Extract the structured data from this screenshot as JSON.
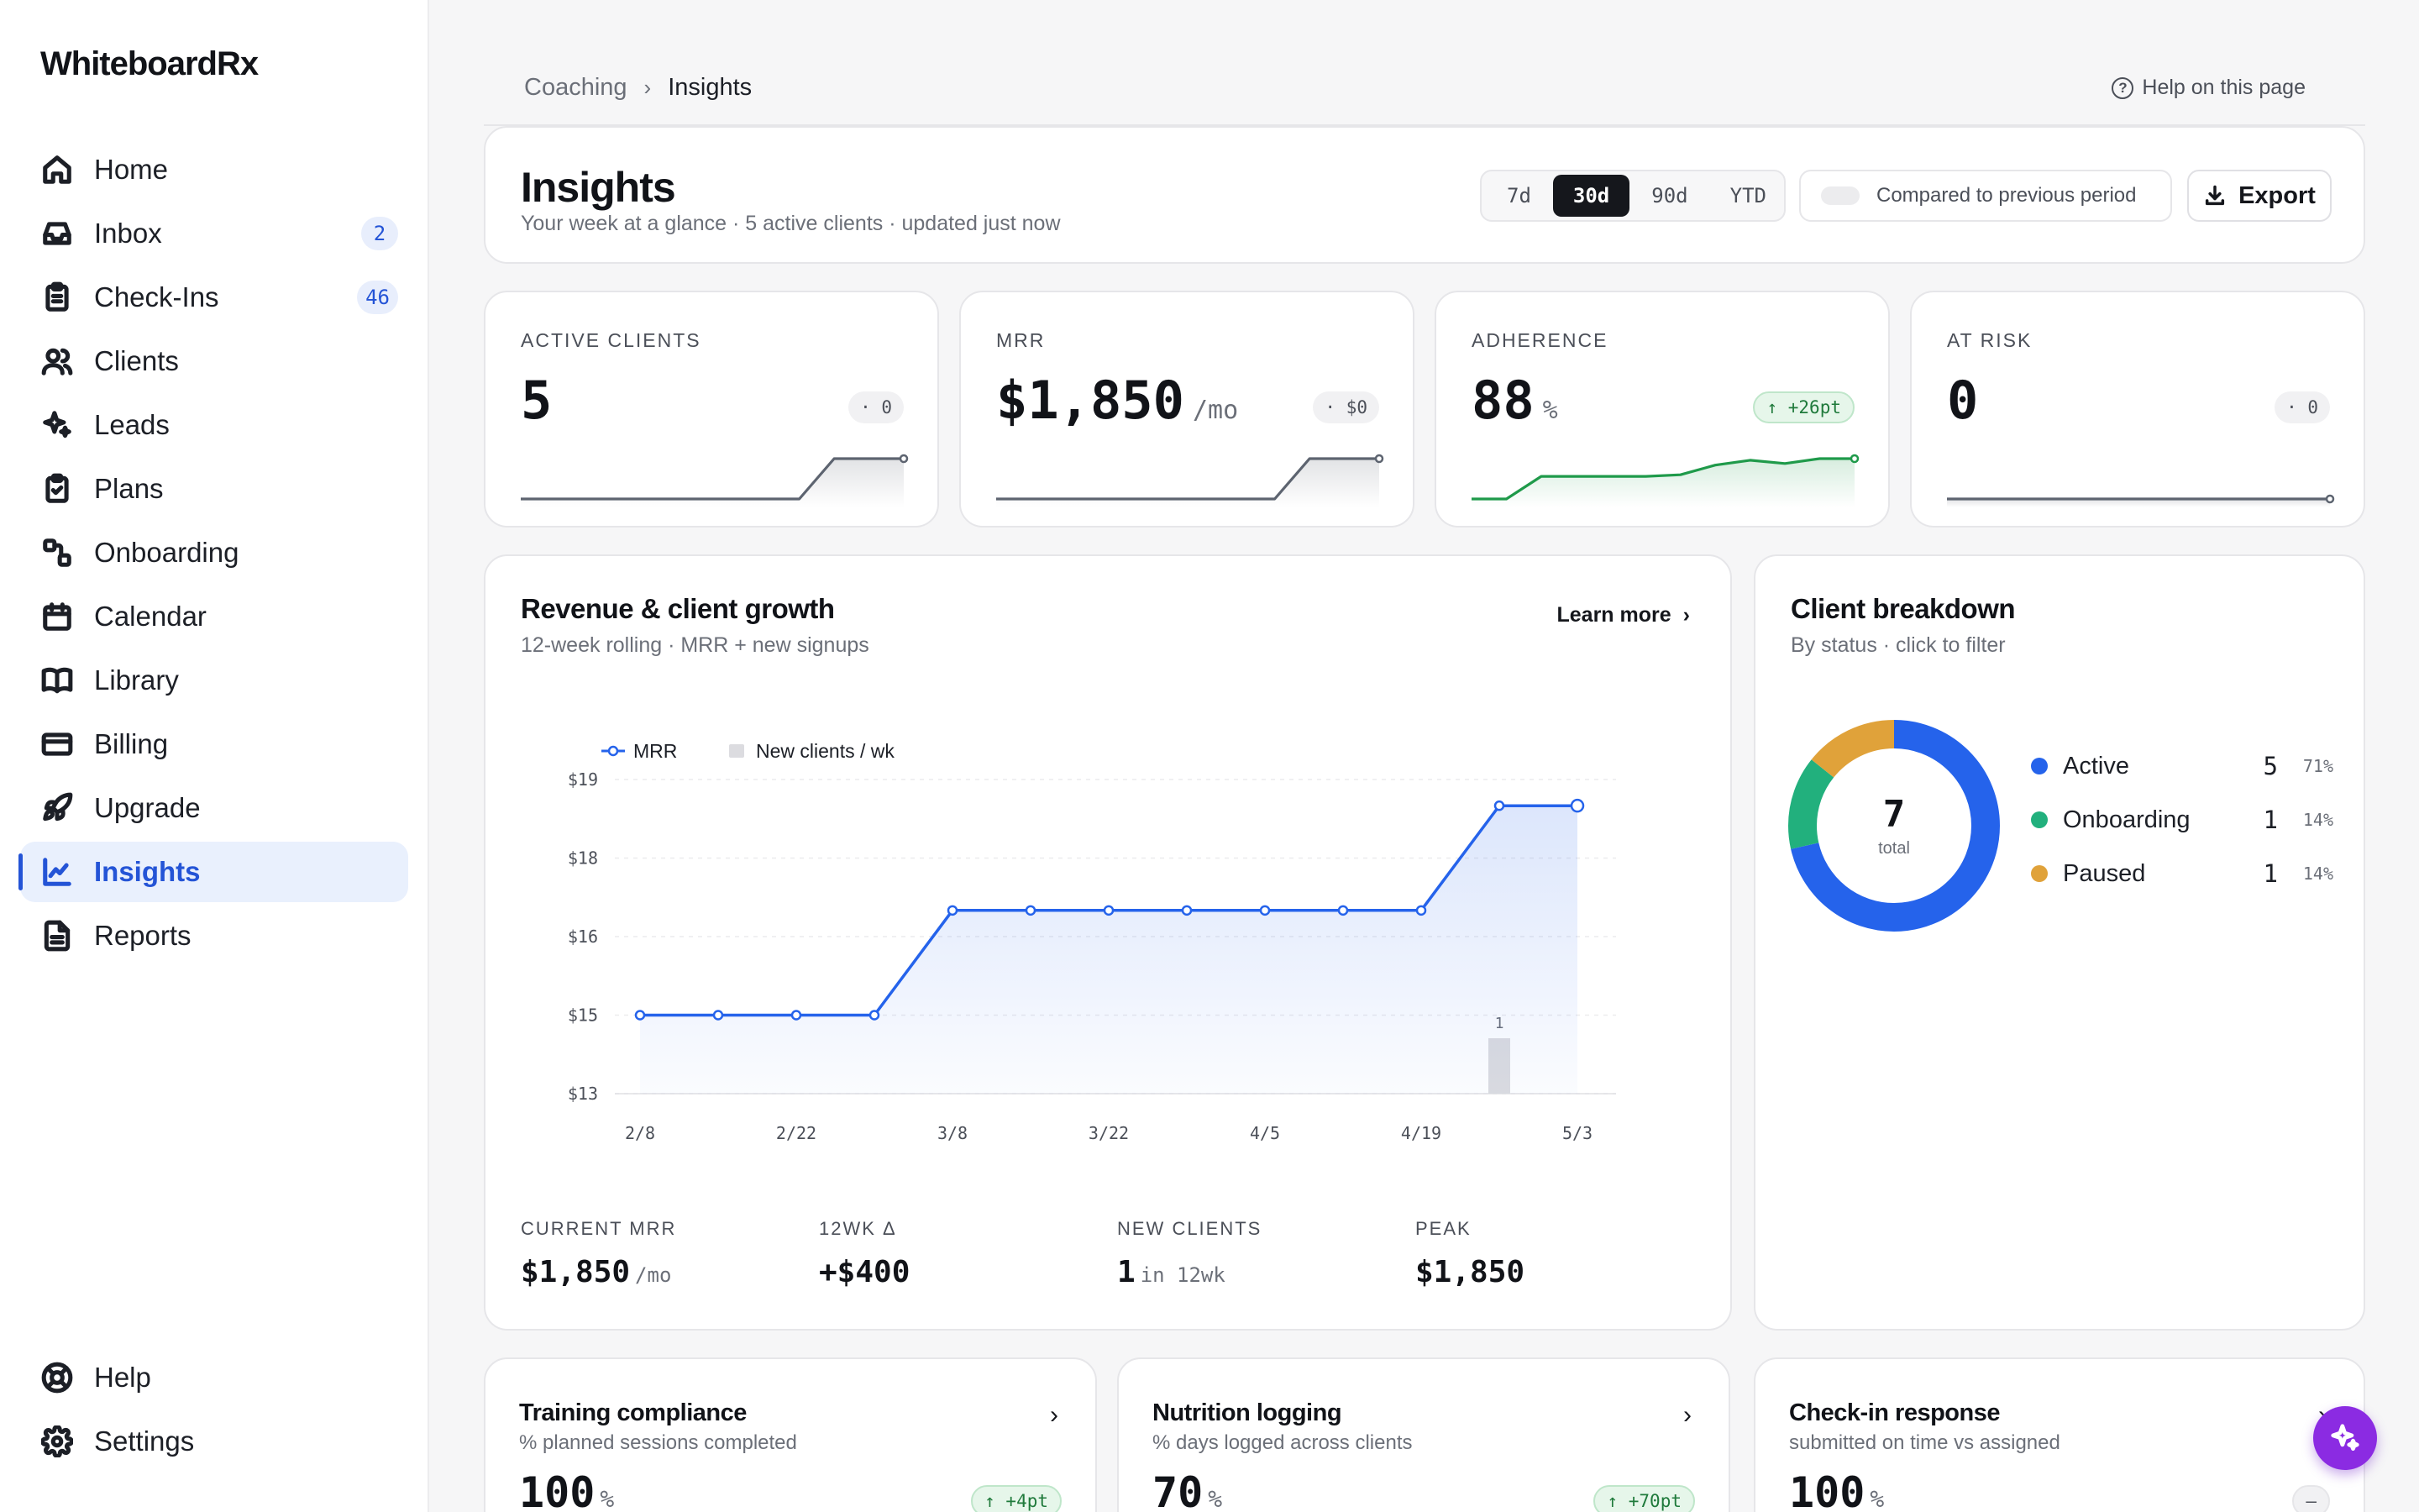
{
  "app": {
    "name": "WhiteboardRx"
  },
  "sidebar": {
    "items": [
      {
        "label": "Home",
        "icon": "home-icon"
      },
      {
        "label": "Inbox",
        "icon": "inbox-icon",
        "badge": "2"
      },
      {
        "label": "Check-Ins",
        "icon": "clipboard-icon",
        "badge": "46"
      },
      {
        "label": "Clients",
        "icon": "users-icon"
      },
      {
        "label": "Leads",
        "icon": "sparkles-icon"
      },
      {
        "label": "Plans",
        "icon": "clipboard-check-icon"
      },
      {
        "label": "Onboarding",
        "icon": "workflow-icon"
      },
      {
        "label": "Calendar",
        "icon": "calendar-icon"
      },
      {
        "label": "Library",
        "icon": "book-icon"
      },
      {
        "label": "Billing",
        "icon": "credit-card-icon"
      },
      {
        "label": "Upgrade",
        "icon": "rocket-icon"
      },
      {
        "label": "Insights",
        "icon": "chart-line-icon",
        "active": true
      },
      {
        "label": "Reports",
        "icon": "file-text-icon"
      }
    ],
    "bottom": [
      {
        "label": "Help",
        "icon": "life-buoy-icon"
      },
      {
        "label": "Settings",
        "icon": "gear-icon"
      }
    ]
  },
  "breadcrumb": {
    "parent": "Coaching",
    "sep": "›",
    "current": "Insights"
  },
  "help": {
    "label": "Help on this page"
  },
  "header": {
    "title": "Insights",
    "subtitle": "Your week at a glance · 5 active clients · updated just now",
    "ranges": [
      "7d",
      "30d",
      "90d",
      "YTD"
    ],
    "selected_range": "30d",
    "compare_label": "Compared to previous period",
    "export_label": "Export"
  },
  "kpis": [
    {
      "label": "ACTIVE CLIENTS",
      "value": "5",
      "unit": "",
      "delta": "· 0",
      "trend": "flat",
      "spark": [
        0,
        0,
        0,
        0,
        0,
        0,
        0,
        0,
        0,
        1,
        1,
        1
      ]
    },
    {
      "label": "MRR",
      "value": "$1,850",
      "unit": "/mo",
      "delta": "· $0",
      "trend": "flat",
      "spark": [
        0,
        0,
        0,
        0,
        0,
        0,
        0,
        0,
        0,
        1,
        1,
        1
      ]
    },
    {
      "label": "ADHERENCE",
      "value": "88",
      "unit": "%",
      "delta": "↑ +26pt",
      "trend": "up",
      "spark": [
        62,
        62,
        76,
        76,
        76,
        76,
        77,
        83,
        86,
        84,
        87,
        87
      ]
    },
    {
      "label": "AT RISK",
      "value": "0",
      "unit": "",
      "delta": "· 0",
      "trend": "flat",
      "spark": [
        0,
        0,
        0,
        0,
        0,
        0,
        0,
        0,
        0,
        0,
        0,
        0
      ]
    }
  ],
  "revenue": {
    "title": "Revenue & client growth",
    "subtitle": "12-week rolling · MRR + new signups",
    "learn_more": "Learn more",
    "stats": [
      {
        "label": "CURRENT MRR",
        "value": "$1,850",
        "unit": "/mo"
      },
      {
        "label": "12WK Δ",
        "value": "+$400",
        "unit": ""
      },
      {
        "label": "NEW CLIENTS",
        "value": "1",
        "unit": "in 12wk"
      },
      {
        "label": "PEAK",
        "value": "$1,850",
        "unit": ""
      }
    ]
  },
  "chart_data": {
    "type": "line",
    "title": "",
    "xlabel": "",
    "ylabel": "",
    "legend_position": "top-left",
    "grid": true,
    "x": [
      "2/8",
      "2/15",
      "2/22",
      "3/1",
      "3/8",
      "3/15",
      "3/22",
      "3/29",
      "4/5",
      "4/12",
      "4/19",
      "4/26",
      "5/3"
    ],
    "x_tick_labels": [
      "2/8",
      "2/22",
      "3/8",
      "3/22",
      "4/5",
      "4/19",
      "5/3"
    ],
    "y_tick_labels": [
      "$19",
      "$18",
      "$16",
      "$15",
      "$13"
    ],
    "ylim": [
      13,
      19
    ],
    "series": [
      {
        "name": "MRR",
        "kind": "line",
        "color": "#2563eb",
        "values": [
          14.5,
          14.5,
          14.5,
          14.5,
          16.5,
          16.5,
          16.5,
          16.5,
          16.5,
          16.5,
          16.5,
          18.5,
          18.5
        ]
      },
      {
        "name": "New clients / wk",
        "kind": "bar",
        "color": "#dcdce0",
        "values": [
          0,
          0,
          0,
          0,
          0,
          0,
          0,
          0,
          0,
          0,
          0,
          1,
          0
        ]
      }
    ],
    "bar_labels": [
      "",
      "",
      "",
      "",
      "",
      "",
      "",
      "",
      "",
      "",
      "",
      "1",
      ""
    ]
  },
  "breakdown": {
    "title": "Client breakdown",
    "subtitle": "By status · click to filter",
    "total": "7",
    "total_label": "total",
    "segments": [
      {
        "name": "Active",
        "count": "5",
        "pct": "71%",
        "value": 5,
        "color": "#2563eb"
      },
      {
        "name": "Onboarding",
        "count": "1",
        "pct": "14%",
        "value": 1,
        "color": "#22b07d"
      },
      {
        "name": "Paused",
        "count": "1",
        "pct": "14%",
        "value": 1,
        "color": "#e0a23a"
      }
    ]
  },
  "bottom_cards": [
    {
      "title": "Training compliance",
      "subtitle": "% planned sessions completed",
      "value": "100",
      "unit": "%",
      "delta": "↑ +4pt",
      "trend": "up"
    },
    {
      "title": "Nutrition logging",
      "subtitle": "% days logged across clients",
      "value": "70",
      "unit": "%",
      "delta": "↑ +70pt",
      "trend": "up"
    },
    {
      "title": "Check-in response",
      "subtitle": "submitted on time vs assigned",
      "value": "100",
      "unit": "%",
      "delta": "–",
      "trend": "flat"
    }
  ],
  "colors": {
    "accent": "#2454d6",
    "positive": "#1f7a3b",
    "fab": "#8b2be2"
  }
}
